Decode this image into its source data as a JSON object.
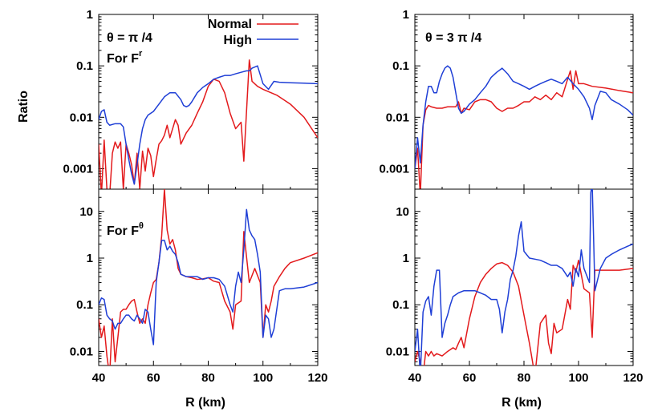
{
  "ylabel": "Ratio",
  "xlabel": "R (km)",
  "legend": [
    {
      "label": "Normal",
      "color": "#e31a1c"
    },
    {
      "label": "High",
      "color": "#1f3fd6"
    }
  ],
  "annotations": {
    "left_top": "θ = π /4",
    "right_top": "θ = 3 π /4",
    "for_fr_base": "For F",
    "for_fr_sup": "r",
    "for_ftheta_base": "For F",
    "for_ftheta_sup": "θ"
  },
  "colors": {
    "normal": "#e31a1c",
    "high": "#1f3fd6"
  },
  "chart_data": [
    {
      "id": "top-left",
      "type": "line",
      "xlim": [
        40,
        120
      ],
      "ylim": [
        0.0004,
        1
      ],
      "yscale": "log",
      "xticks": [
        40,
        60,
        80,
        100,
        120
      ],
      "xticklabels": [
        "40",
        "60",
        "80",
        "100",
        "120"
      ],
      "yticks": [
        0.001,
        0.01,
        0.1,
        1
      ],
      "yticklabels": [
        "0.001",
        "0.01",
        "0.1",
        "1"
      ],
      "show_xticklabels": false,
      "series": [
        {
          "name": "Normal",
          "x": [
            40,
            41,
            42,
            43,
            44,
            45,
            46,
            47,
            48,
            49,
            50,
            51,
            52,
            53,
            54,
            55,
            56,
            57,
            58,
            59,
            60,
            61,
            62,
            63,
            64,
            65,
            66,
            67,
            68,
            69,
            70,
            72,
            74,
            76,
            78,
            80,
            82,
            84,
            86,
            88,
            90,
            92,
            93,
            95,
            96,
            98,
            100,
            105,
            110,
            115,
            120
          ],
          "y": [
            0.003,
            0.0003,
            0.0036,
            0.0004,
            0.0003,
            0.002,
            0.0033,
            0.0025,
            0.0033,
            0.0004,
            0.003,
            0.002,
            0.0012,
            0.0005,
            0.002,
            0.0004,
            0.0022,
            0.0009,
            0.0025,
            0.0018,
            0.0007,
            0.0015,
            0.003,
            0.0035,
            0.0045,
            0.007,
            0.004,
            0.006,
            0.009,
            0.007,
            0.003,
            0.005,
            0.007,
            0.012,
            0.02,
            0.04,
            0.055,
            0.05,
            0.03,
            0.012,
            0.006,
            0.008,
            0.0014,
            0.13,
            0.05,
            0.04,
            0.035,
            0.027,
            0.018,
            0.01,
            0.004
          ]
        },
        {
          "name": "High",
          "x": [
            40,
            41,
            42,
            43,
            44,
            46,
            48,
            49,
            50,
            51,
            52,
            53,
            54,
            55,
            56,
            57,
            58,
            60,
            62,
            64,
            66,
            68,
            70,
            71,
            72,
            73,
            74,
            76,
            78,
            80,
            82,
            84,
            86,
            88,
            90,
            92,
            94,
            95,
            96,
            98,
            100,
            102,
            104,
            106,
            110,
            115,
            120
          ],
          "y": [
            0.009,
            0.013,
            0.014,
            0.008,
            0.007,
            0.0075,
            0.0075,
            0.0065,
            0.003,
            0.0015,
            0.0008,
            0.0005,
            0.0012,
            0.003,
            0.006,
            0.009,
            0.011,
            0.013,
            0.018,
            0.025,
            0.03,
            0.03,
            0.022,
            0.017,
            0.016,
            0.017,
            0.02,
            0.03,
            0.038,
            0.045,
            0.055,
            0.06,
            0.065,
            0.065,
            0.07,
            0.075,
            0.08,
            0.08,
            0.09,
            0.1,
            0.045,
            0.035,
            0.05,
            0.048,
            0.047,
            0.046,
            0.045
          ]
        }
      ]
    },
    {
      "id": "top-right",
      "type": "line",
      "xlim": [
        40,
        120
      ],
      "ylim": [
        0.0004,
        1
      ],
      "yscale": "log",
      "xticks": [
        40,
        60,
        80,
        100,
        120
      ],
      "xticklabels": [
        "40",
        "60",
        "80",
        "100",
        "120"
      ],
      "yticks": [
        0.001,
        0.01,
        0.1,
        1
      ],
      "yticklabels": [
        "0.001",
        "0.01",
        "0.1",
        "1"
      ],
      "show_xticklabels": false,
      "series": [
        {
          "name": "Normal",
          "x": [
            40,
            41,
            42,
            43,
            44,
            45,
            46,
            48,
            50,
            52,
            54,
            55,
            56,
            57,
            58,
            60,
            62,
            64,
            66,
            68,
            70,
            72,
            74,
            76,
            78,
            80,
            82,
            84,
            86,
            88,
            90,
            92,
            94,
            96,
            97,
            98,
            99,
            100,
            102,
            105,
            110,
            115,
            120
          ],
          "y": [
            0.001,
            0.0025,
            0.0003,
            0.007,
            0.014,
            0.017,
            0.016,
            0.015,
            0.015,
            0.016,
            0.016,
            0.016,
            0.02,
            0.012,
            0.015,
            0.014,
            0.02,
            0.022,
            0.022,
            0.02,
            0.015,
            0.013,
            0.015,
            0.015,
            0.017,
            0.02,
            0.02,
            0.025,
            0.022,
            0.027,
            0.022,
            0.03,
            0.025,
            0.055,
            0.08,
            0.035,
            0.08,
            0.045,
            0.045,
            0.04,
            0.037,
            0.033,
            0.03
          ]
        },
        {
          "name": "High",
          "x": [
            40,
            41,
            42,
            43,
            44,
            45,
            46,
            47,
            48,
            49,
            50,
            51,
            52,
            53,
            54,
            55,
            56,
            57,
            58,
            60,
            62,
            64,
            66,
            68,
            70,
            72,
            74,
            76,
            78,
            80,
            82,
            84,
            86,
            88,
            90,
            92,
            94,
            96,
            98,
            100,
            102,
            104,
            105,
            106,
            108,
            110,
            112,
            115,
            118,
            120
          ],
          "y": [
            0.001,
            0.004,
            0.0013,
            0.007,
            0.02,
            0.04,
            0.04,
            0.03,
            0.03,
            0.05,
            0.07,
            0.09,
            0.1,
            0.09,
            0.06,
            0.03,
            0.015,
            0.012,
            0.013,
            0.018,
            0.022,
            0.03,
            0.04,
            0.06,
            0.075,
            0.09,
            0.07,
            0.05,
            0.045,
            0.04,
            0.035,
            0.04,
            0.045,
            0.05,
            0.055,
            0.05,
            0.045,
            0.06,
            0.045,
            0.035,
            0.025,
            0.015,
            0.009,
            0.017,
            0.032,
            0.03,
            0.022,
            0.018,
            0.014,
            0.011
          ]
        }
      ]
    },
    {
      "id": "bottom-left",
      "type": "line",
      "xlim": [
        40,
        120
      ],
      "ylim": [
        0.005,
        30
      ],
      "yscale": "log",
      "xticks": [
        40,
        60,
        80,
        100,
        120
      ],
      "xticklabels": [
        "40",
        "60",
        "80",
        "100",
        "120"
      ],
      "yticks": [
        0.01,
        0.1,
        1,
        10
      ],
      "yticklabels": [
        "0.01",
        "0.1",
        "1",
        "10"
      ],
      "show_xticklabels": true,
      "series": [
        {
          "name": "Normal",
          "x": [
            40,
            41,
            42,
            43,
            44,
            45,
            46,
            47,
            48,
            49,
            50,
            51,
            52,
            53,
            54,
            55,
            56,
            57,
            58,
            59,
            60,
            61,
            62,
            63,
            64,
            65,
            66,
            67,
            68,
            69,
            70,
            72,
            74,
            76,
            78,
            80,
            82,
            84,
            86,
            88,
            89,
            90,
            92,
            93,
            95,
            97,
            99,
            100,
            101,
            102,
            103,
            104,
            106,
            108,
            110,
            115,
            120
          ],
          "y": [
            0.05,
            0.02,
            0.035,
            0.008,
            0.003,
            0.05,
            0.006,
            0.02,
            0.07,
            0.08,
            0.08,
            0.1,
            0.12,
            0.13,
            0.07,
            0.04,
            0.05,
            0.04,
            0.1,
            0.18,
            0.3,
            0.35,
            0.8,
            3,
            30,
            4,
            2,
            2.5,
            1.5,
            0.6,
            0.45,
            0.4,
            0.38,
            0.35,
            0.36,
            0.38,
            0.32,
            0.3,
            0.12,
            0.07,
            0.03,
            0.1,
            0.12,
            3.7,
            0.3,
            0.6,
            0.3,
            0.02,
            0.1,
            0.07,
            0.12,
            0.25,
            0.4,
            0.6,
            0.8,
            1,
            1.3
          ]
        },
        {
          "name": "High",
          "x": [
            40,
            41,
            42,
            43,
            44,
            45,
            46,
            47,
            48,
            49,
            50,
            51,
            52,
            53,
            54,
            55,
            56,
            57,
            58,
            59,
            60,
            61,
            62,
            63,
            64,
            65,
            66,
            67,
            68,
            69,
            70,
            72,
            74,
            76,
            78,
            80,
            82,
            84,
            86,
            88,
            89,
            90,
            91,
            92,
            93,
            94,
            95,
            96,
            97,
            98,
            99,
            100,
            101,
            102,
            103,
            104,
            106,
            108,
            110,
            115,
            120
          ],
          "y": [
            0.1,
            0.14,
            0.13,
            0.06,
            0.05,
            0.045,
            0.03,
            0.04,
            0.04,
            0.05,
            0.06,
            0.06,
            0.05,
            0.045,
            0.06,
            0.05,
            0.04,
            0.08,
            0.07,
            0.03,
            0.014,
            0.3,
            0.8,
            2.4,
            2.4,
            1.5,
            1.8,
            1.4,
            1.2,
            0.8,
            0.45,
            0.4,
            0.4,
            0.4,
            0.35,
            0.38,
            0.38,
            0.35,
            0.25,
            0.1,
            0.07,
            0.25,
            0.5,
            0.3,
            1.5,
            11,
            4,
            3,
            2.5,
            1.2,
            0.5,
            0.02,
            0.06,
            0.05,
            0.02,
            0.03,
            0.2,
            0.22,
            0.22,
            0.24,
            0.3
          ]
        }
      ]
    },
    {
      "id": "bottom-right",
      "type": "line",
      "xlim": [
        40,
        120
      ],
      "ylim": [
        0.005,
        30
      ],
      "yscale": "log",
      "xticks": [
        40,
        60,
        80,
        100,
        120
      ],
      "xticklabels": [
        "40",
        "60",
        "80",
        "100",
        "120"
      ],
      "yticks": [
        0.01,
        0.1,
        1,
        10
      ],
      "yticklabels": [
        "0.01",
        "0.1",
        "1",
        "10"
      ],
      "show_xticklabels": true,
      "series": [
        {
          "name": "Normal",
          "x": [
            40,
            41,
            42,
            43,
            44,
            45,
            46,
            47,
            48,
            50,
            52,
            54,
            55,
            56,
            57,
            58,
            60,
            62,
            64,
            66,
            68,
            70,
            72,
            74,
            76,
            78,
            80,
            82,
            84,
            86,
            88,
            89,
            90,
            91,
            92,
            94,
            96,
            97,
            98,
            99,
            100,
            102,
            104,
            105,
            106,
            110,
            115,
            120
          ],
          "y": [
            0.006,
            0.01,
            0.006,
            0.003,
            0.01,
            0.008,
            0.01,
            0.008,
            0.009,
            0.008,
            0.01,
            0.012,
            0.011,
            0.015,
            0.02,
            0.012,
            0.05,
            0.15,
            0.3,
            0.45,
            0.6,
            0.75,
            0.8,
            0.7,
            0.5,
            0.25,
            0.06,
            0.015,
            0.003,
            0.04,
            0.06,
            0.015,
            0.009,
            0.04,
            0.025,
            0.03,
            0.13,
            0.08,
            0.7,
            0.5,
            0.9,
            0.22,
            0.18,
            0.02,
            0.55,
            0.55,
            0.55,
            0.6
          ]
        },
        {
          "name": "High",
          "x": [
            40,
            41,
            42,
            43,
            44,
            45,
            46,
            47,
            48,
            49,
            50,
            51,
            52,
            53,
            54,
            56,
            58,
            60,
            62,
            64,
            66,
            68,
            70,
            71,
            72,
            73,
            74,
            75,
            76,
            77,
            78,
            79,
            80,
            82,
            84,
            86,
            88,
            90,
            92,
            94,
            96,
            97,
            98,
            99,
            100,
            101,
            102,
            104,
            104.5,
            105,
            105.5,
            106,
            108,
            110,
            112,
            115,
            118,
            120
          ],
          "y": [
            0.01,
            0.03,
            0.003,
            0.07,
            0.12,
            0.15,
            0.06,
            0.25,
            0.55,
            0.55,
            0.02,
            0.04,
            0.06,
            0.1,
            0.15,
            0.18,
            0.2,
            0.2,
            0.2,
            0.18,
            0.16,
            0.13,
            0.13,
            0.08,
            0.025,
            0.07,
            0.13,
            0.35,
            0.55,
            1.1,
            3,
            6,
            1.4,
            1,
            0.95,
            0.9,
            0.8,
            0.7,
            0.7,
            0.6,
            0.4,
            0.5,
            0.25,
            0.6,
            0.4,
            1.5,
            0.6,
            0.3,
            25,
            40,
            3,
            0.2,
            0.6,
            1,
            1.2,
            1.5,
            1.8,
            2
          ]
        }
      ]
    }
  ]
}
